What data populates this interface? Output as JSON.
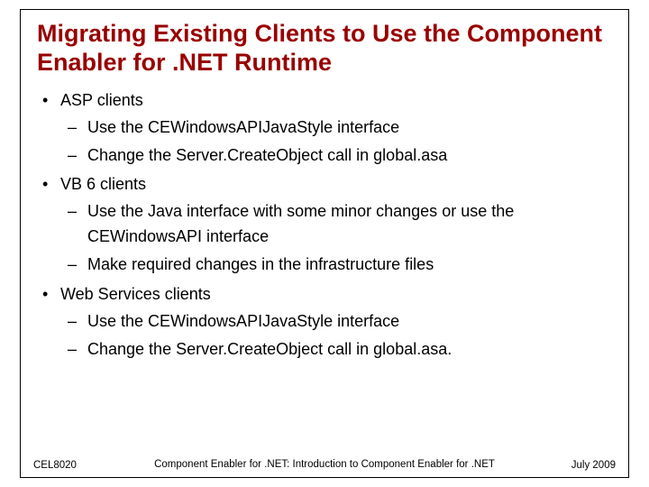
{
  "slide": {
    "title": "Migrating Existing Clients to Use the Component Enabler for .NET Runtime",
    "title_color": "#990000",
    "title_fontsize": 27,
    "body_fontsize": 18,
    "border_color": "#000000",
    "background_color": "#ffffff",
    "bullets": [
      {
        "text": "ASP clients",
        "children": [
          {
            "text": "Use the CEWindowsAPIJavaStyle interface"
          },
          {
            "text": "Change the Server.CreateObject call in global.asa"
          }
        ]
      },
      {
        "text": "VB 6 clients",
        "children": [
          {
            "text": "Use the Java interface with some minor changes or use the CEWindowsAPI interface"
          },
          {
            "text": "Make required changes in the infrastructure files"
          }
        ]
      },
      {
        "text": "Web Services clients",
        "children": [
          {
            "text": "Use the CEWindowsAPIJavaStyle interface"
          },
          {
            "text": "Change the Server.CreateObject call in global.asa."
          }
        ]
      }
    ],
    "footer": {
      "left": "CEL8020",
      "center": "Component Enabler for .NET: Introduction to Component Enabler for .NET",
      "right": "July 2009",
      "fontsize": 11.5
    }
  }
}
